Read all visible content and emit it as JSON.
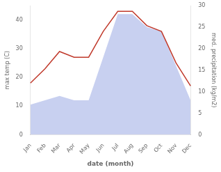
{
  "chart_data": {
    "type": "line",
    "categories": [
      "Jan",
      "Feb",
      "Mar",
      "Apr",
      "May",
      "Jun",
      "Jul",
      "Aug",
      "Sep",
      "Oct",
      "Nov",
      "Dec"
    ],
    "xlabel": "date (month)",
    "ylabel": "max temp (C)",
    "y2label": "med. precipitation (kg/m2)",
    "series": [
      {
        "type": "area",
        "color": "#c8d0f0",
        "axis": "y2",
        "values": [
          7,
          8,
          9,
          8,
          8,
          18,
          28,
          28,
          25,
          24,
          16,
          8
        ]
      },
      {
        "type": "line",
        "color": "#c0392b",
        "values": [
          18,
          23,
          29,
          27,
          27,
          36,
          43,
          43,
          38,
          36,
          25,
          17
        ]
      }
    ],
    "ylim": [
      0,
      45
    ],
    "yticks": [
      0,
      10,
      20,
      30,
      40
    ],
    "y2lim": [
      0,
      30
    ],
    "y2ticks": [
      0,
      5,
      10,
      15,
      20,
      25,
      30
    ],
    "grid": false
  }
}
